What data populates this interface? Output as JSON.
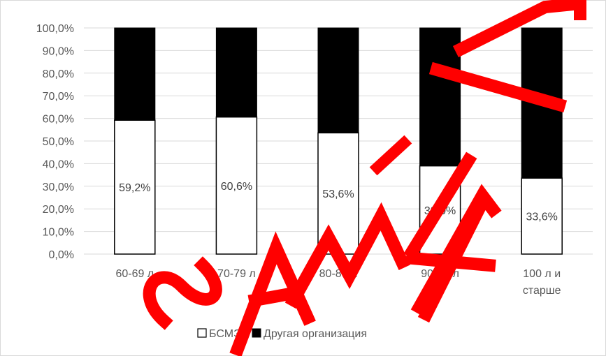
{
  "chart_data": {
    "type": "bar",
    "stacked": true,
    "percent_stacked": true,
    "categories": [
      [
        "60-69 л"
      ],
      [
        "70-79 л"
      ],
      [
        "80-89 л"
      ],
      [
        "90-99 л"
      ],
      [
        "100 л и",
        "старше"
      ]
    ],
    "series": [
      {
        "name": "БСМЭ",
        "values": [
          59.2,
          60.6,
          53.6,
          39.0,
          33.6
        ],
        "labels": [
          "59,2%",
          "60,6%",
          "53,6%",
          "39,0%",
          "33,6%"
        ],
        "color": "#ffffff"
      },
      {
        "name": "Другая организация",
        "values": [
          40.8,
          39.4,
          46.4,
          61.0,
          66.4
        ],
        "color": "#000000"
      }
    ],
    "y_ticks": [
      "0,0%",
      "10,0%",
      "20,0%",
      "30,0%",
      "40,0%",
      "50,0%",
      "60,0%",
      "70,0%",
      "80,0%",
      "90,0%",
      "100,0%"
    ],
    "ylim": [
      0,
      100
    ],
    "grid": true,
    "legend_position": "bottom",
    "title": "",
    "xlabel": "",
    "ylabel": ""
  },
  "legend": {
    "items": [
      "БСМЭ",
      "Другая организация"
    ]
  },
  "watermark": {
    "text": "SAMPLE",
    "color": "#ff0000"
  }
}
